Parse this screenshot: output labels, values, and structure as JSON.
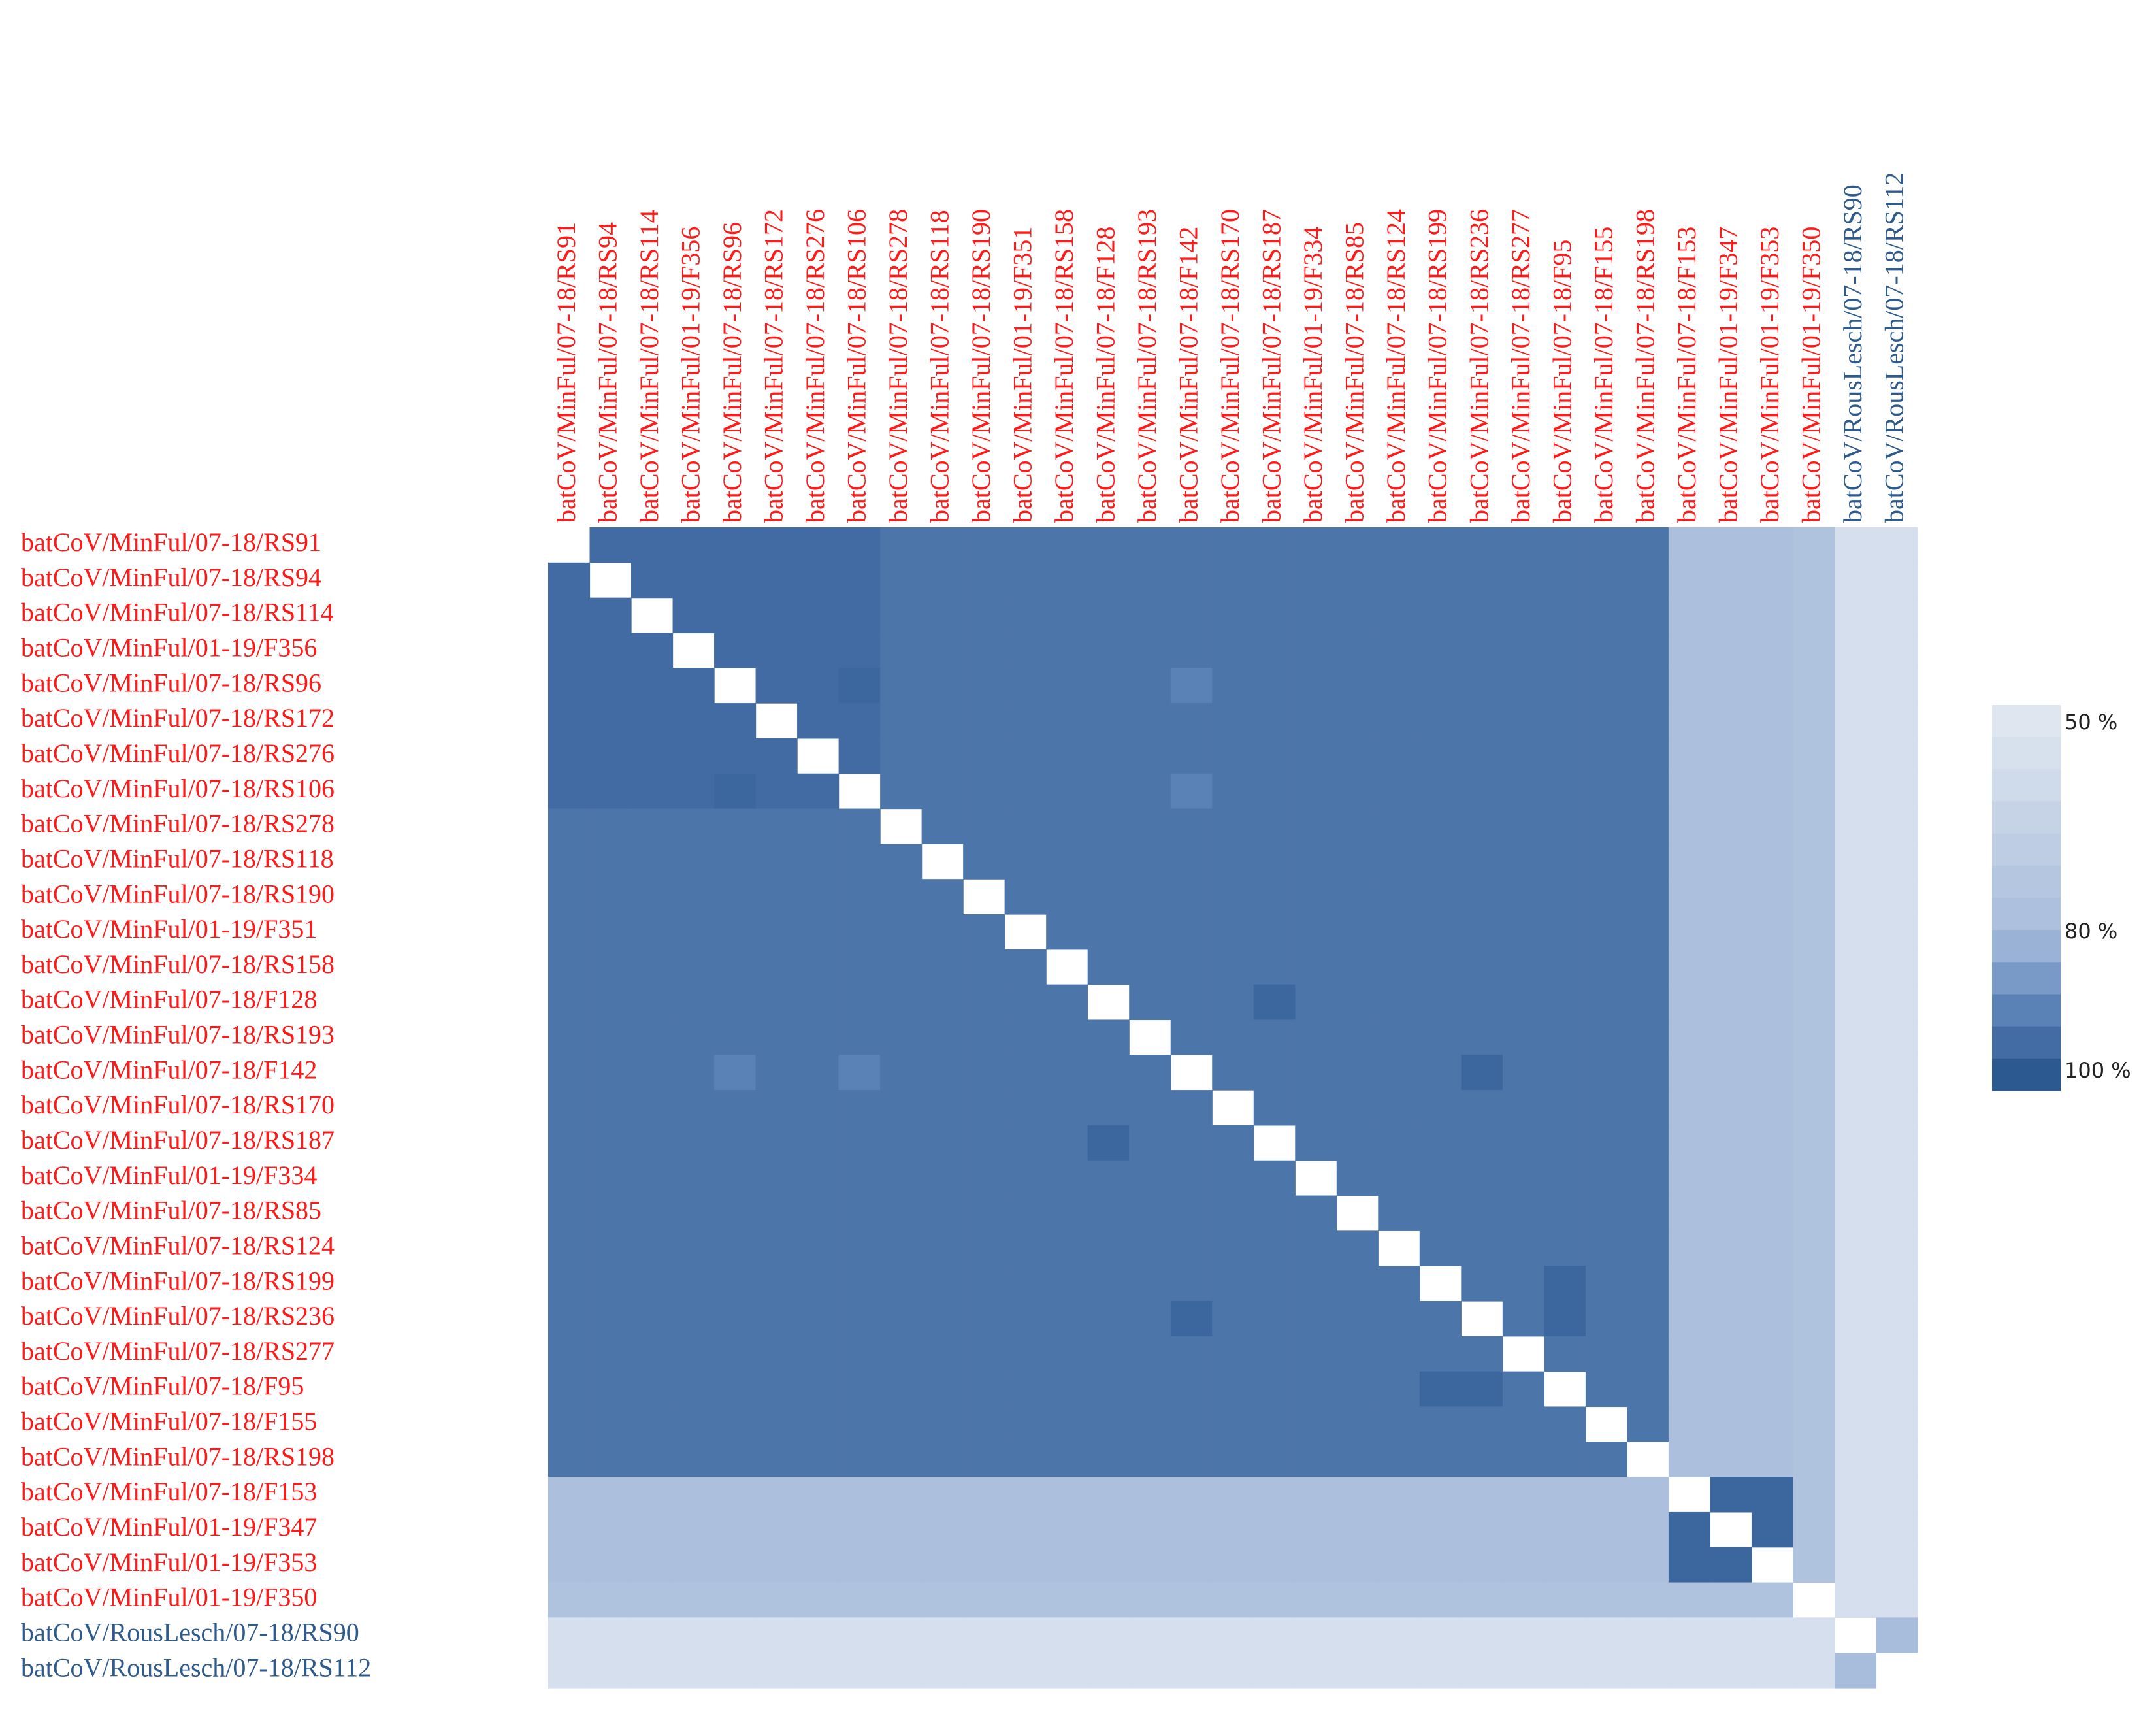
{
  "chart_data": {
    "type": "heatmap",
    "categories": [
      "batCoV/MinFul/07-18/RS91",
      "batCoV/MinFul/07-18/RS94",
      "batCoV/MinFul/07-18/RS114",
      "batCoV/MinFul/01-19/F356",
      "batCoV/MinFul/07-18/RS96",
      "batCoV/MinFul/07-18/RS172",
      "batCoV/MinFul/07-18/RS276",
      "batCoV/MinFul/07-18/RS106",
      "batCoV/MinFul/07-18/RS278",
      "batCoV/MinFul/07-18/RS118",
      "batCoV/MinFul/07-18/RS190",
      "batCoV/MinFul/01-19/F351",
      "batCoV/MinFul/07-18/RS158",
      "batCoV/MinFul/07-18/F128",
      "batCoV/MinFul/07-18/RS193",
      "batCoV/MinFul/07-18/F142",
      "batCoV/MinFul/07-18/RS170",
      "batCoV/MinFul/07-18/RS187",
      "batCoV/MinFul/01-19/F334",
      "batCoV/MinFul/07-18/RS85",
      "batCoV/MinFul/07-18/RS124",
      "batCoV/MinFul/07-18/RS199",
      "batCoV/MinFul/07-18/RS236",
      "batCoV/MinFul/07-18/RS277",
      "batCoV/MinFul/07-18/F95",
      "batCoV/MinFul/07-18/F155",
      "batCoV/MinFul/07-18/RS198",
      "batCoV/MinFul/07-18/F153",
      "batCoV/MinFul/01-19/F347",
      "batCoV/MinFul/01-19/F353",
      "batCoV/MinFul/01-19/F350",
      "batCoV/RousLesch/07-18/RS90",
      "batCoV/RousLesch/07-18/RS112"
    ],
    "label_colors": [
      "#ff1a1a",
      "#ff1a1a",
      "#ff1a1a",
      "#ff1a1a",
      "#ff1a1a",
      "#ff1a1a",
      "#ff1a1a",
      "#ff1a1a",
      "#ff1a1a",
      "#ff1a1a",
      "#ff1a1a",
      "#ff1a1a",
      "#ff1a1a",
      "#ff1a1a",
      "#ff1a1a",
      "#ff1a1a",
      "#ff1a1a",
      "#ff1a1a",
      "#ff1a1a",
      "#ff1a1a",
      "#ff1a1a",
      "#ff1a1a",
      "#ff1a1a",
      "#ff1a1a",
      "#ff1a1a",
      "#ff1a1a",
      "#ff1a1a",
      "#ff1a1a",
      "#ff1a1a",
      "#ff1a1a",
      "#ff1a1a",
      "#2f5a8c",
      "#2f5a8c"
    ],
    "values": [
      [
        null,
        96,
        96,
        96,
        96,
        96,
        96,
        96,
        94,
        94,
        94,
        94,
        94,
        94,
        94,
        94,
        94,
        94,
        94,
        94,
        94,
        94,
        94,
        94,
        94,
        94,
        94,
        78,
        78,
        78,
        76,
        55,
        55
      ],
      [
        96,
        null,
        96,
        96,
        96,
        96,
        96,
        96,
        94,
        94,
        94,
        94,
        94,
        94,
        94,
        94,
        94,
        94,
        94,
        94,
        94,
        94,
        94,
        94,
        94,
        94,
        94,
        78,
        78,
        78,
        76,
        55,
        55
      ],
      [
        96,
        96,
        null,
        96,
        96,
        96,
        96,
        96,
        94,
        94,
        94,
        94,
        94,
        94,
        94,
        94,
        94,
        94,
        94,
        94,
        94,
        94,
        94,
        94,
        94,
        94,
        94,
        78,
        78,
        78,
        76,
        55,
        55
      ],
      [
        96,
        96,
        96,
        null,
        96,
        96,
        96,
        96,
        94,
        94,
        94,
        94,
        94,
        94,
        94,
        94,
        94,
        94,
        94,
        94,
        94,
        94,
        94,
        94,
        94,
        94,
        94,
        78,
        78,
        78,
        76,
        55,
        55
      ],
      [
        96,
        96,
        96,
        96,
        null,
        96,
        96,
        97,
        94,
        94,
        94,
        94,
        94,
        94,
        94,
        91,
        94,
        94,
        94,
        94,
        94,
        94,
        94,
        94,
        94,
        94,
        94,
        78,
        78,
        78,
        76,
        55,
        55
      ],
      [
        96,
        96,
        96,
        96,
        96,
        null,
        96,
        96,
        94,
        94,
        94,
        94,
        94,
        94,
        94,
        94,
        94,
        94,
        94,
        94,
        94,
        94,
        94,
        94,
        94,
        94,
        94,
        78,
        78,
        78,
        76,
        55,
        55
      ],
      [
        96,
        96,
        96,
        96,
        96,
        96,
        null,
        96,
        94,
        94,
        94,
        94,
        94,
        94,
        94,
        94,
        94,
        94,
        94,
        94,
        94,
        94,
        94,
        94,
        94,
        94,
        94,
        78,
        78,
        78,
        76,
        55,
        55
      ],
      [
        96,
        96,
        96,
        96,
        97,
        96,
        96,
        null,
        94,
        94,
        94,
        94,
        94,
        94,
        94,
        91,
        94,
        94,
        94,
        94,
        94,
        94,
        94,
        94,
        94,
        94,
        94,
        78,
        78,
        78,
        76,
        55,
        55
      ],
      [
        94,
        94,
        94,
        94,
        94,
        94,
        94,
        94,
        null,
        94,
        94,
        94,
        94,
        94,
        94,
        94,
        94,
        94,
        94,
        94,
        94,
        94,
        94,
        94,
        94,
        94,
        94,
        78,
        78,
        78,
        76,
        55,
        55
      ],
      [
        94,
        94,
        94,
        94,
        94,
        94,
        94,
        94,
        94,
        null,
        94,
        94,
        94,
        94,
        94,
        94,
        94,
        94,
        94,
        94,
        94,
        94,
        94,
        94,
        94,
        94,
        94,
        78,
        78,
        78,
        76,
        55,
        55
      ],
      [
        94,
        94,
        94,
        94,
        94,
        94,
        94,
        94,
        94,
        94,
        null,
        94,
        94,
        94,
        94,
        94,
        94,
        94,
        94,
        94,
        94,
        94,
        94,
        94,
        94,
        94,
        94,
        78,
        78,
        78,
        76,
        55,
        55
      ],
      [
        94,
        94,
        94,
        94,
        94,
        94,
        94,
        94,
        94,
        94,
        94,
        null,
        94,
        94,
        94,
        94,
        94,
        94,
        94,
        94,
        94,
        94,
        94,
        94,
        94,
        94,
        94,
        78,
        78,
        78,
        76,
        55,
        55
      ],
      [
        94,
        94,
        94,
        94,
        94,
        94,
        94,
        94,
        94,
        94,
        94,
        94,
        null,
        94,
        94,
        94,
        94,
        94,
        94,
        94,
        94,
        94,
        94,
        94,
        94,
        94,
        94,
        78,
        78,
        78,
        76,
        55,
        55
      ],
      [
        94,
        94,
        94,
        94,
        94,
        94,
        94,
        94,
        94,
        94,
        94,
        94,
        94,
        null,
        94,
        94,
        94,
        97,
        94,
        94,
        94,
        94,
        94,
        94,
        94,
        94,
        94,
        78,
        78,
        78,
        76,
        55,
        55
      ],
      [
        94,
        94,
        94,
        94,
        94,
        94,
        94,
        94,
        94,
        94,
        94,
        94,
        94,
        94,
        null,
        94,
        94,
        94,
        94,
        94,
        94,
        94,
        94,
        94,
        94,
        94,
        94,
        78,
        78,
        78,
        76,
        55,
        55
      ],
      [
        94,
        94,
        94,
        94,
        91,
        94,
        94,
        91,
        94,
        94,
        94,
        94,
        94,
        94,
        94,
        null,
        94,
        94,
        94,
        94,
        94,
        94,
        97,
        94,
        94,
        94,
        94,
        78,
        78,
        78,
        76,
        55,
        55
      ],
      [
        94,
        94,
        94,
        94,
        94,
        94,
        94,
        94,
        94,
        94,
        94,
        94,
        94,
        94,
        94,
        94,
        null,
        94,
        94,
        94,
        94,
        94,
        94,
        94,
        94,
        94,
        94,
        78,
        78,
        78,
        76,
        55,
        55
      ],
      [
        94,
        94,
        94,
        94,
        94,
        94,
        94,
        94,
        94,
        94,
        94,
        94,
        94,
        97,
        94,
        94,
        94,
        null,
        94,
        94,
        94,
        94,
        94,
        94,
        94,
        94,
        94,
        78,
        78,
        78,
        76,
        55,
        55
      ],
      [
        94,
        94,
        94,
        94,
        94,
        94,
        94,
        94,
        94,
        94,
        94,
        94,
        94,
        94,
        94,
        94,
        94,
        94,
        null,
        94,
        94,
        94,
        94,
        94,
        94,
        94,
        94,
        78,
        78,
        78,
        76,
        55,
        55
      ],
      [
        94,
        94,
        94,
        94,
        94,
        94,
        94,
        94,
        94,
        94,
        94,
        94,
        94,
        94,
        94,
        94,
        94,
        94,
        94,
        null,
        94,
        94,
        94,
        94,
        94,
        94,
        94,
        78,
        78,
        78,
        76,
        55,
        55
      ],
      [
        94,
        94,
        94,
        94,
        94,
        94,
        94,
        94,
        94,
        94,
        94,
        94,
        94,
        94,
        94,
        94,
        94,
        94,
        94,
        94,
        null,
        94,
        94,
        94,
        94,
        94,
        94,
        78,
        78,
        78,
        76,
        55,
        55
      ],
      [
        94,
        94,
        94,
        94,
        94,
        94,
        94,
        94,
        94,
        94,
        94,
        94,
        94,
        94,
        94,
        94,
        94,
        94,
        94,
        94,
        94,
        null,
        94,
        94,
        97,
        94,
        94,
        78,
        78,
        78,
        76,
        55,
        55
      ],
      [
        94,
        94,
        94,
        94,
        94,
        94,
        94,
        94,
        94,
        94,
        94,
        94,
        94,
        94,
        94,
        97,
        94,
        94,
        94,
        94,
        94,
        94,
        null,
        94,
        97,
        94,
        94,
        78,
        78,
        78,
        76,
        55,
        55
      ],
      [
        94,
        94,
        94,
        94,
        94,
        94,
        94,
        94,
        94,
        94,
        94,
        94,
        94,
        94,
        94,
        94,
        94,
        94,
        94,
        94,
        94,
        94,
        94,
        null,
        94,
        94,
        94,
        78,
        78,
        78,
        76,
        55,
        55
      ],
      [
        94,
        94,
        94,
        94,
        94,
        94,
        94,
        94,
        94,
        94,
        94,
        94,
        94,
        94,
        94,
        94,
        94,
        94,
        94,
        94,
        94,
        97,
        97,
        94,
        null,
        94,
        94,
        78,
        78,
        78,
        76,
        55,
        55
      ],
      [
        94,
        94,
        94,
        94,
        94,
        94,
        94,
        94,
        94,
        94,
        94,
        94,
        94,
        94,
        94,
        94,
        94,
        94,
        94,
        94,
        94,
        94,
        94,
        94,
        94,
        null,
        94,
        78,
        78,
        78,
        76,
        55,
        55
      ],
      [
        94,
        94,
        94,
        94,
        94,
        94,
        94,
        94,
        94,
        94,
        94,
        94,
        94,
        94,
        94,
        94,
        94,
        94,
        94,
        94,
        94,
        94,
        94,
        94,
        94,
        94,
        null,
        78,
        78,
        78,
        76,
        55,
        55
      ],
      [
        78,
        78,
        78,
        78,
        78,
        78,
        78,
        78,
        78,
        78,
        78,
        78,
        78,
        78,
        78,
        78,
        78,
        78,
        78,
        78,
        78,
        78,
        78,
        78,
        78,
        78,
        78,
        null,
        97,
        97,
        76,
        55,
        55
      ],
      [
        78,
        78,
        78,
        78,
        78,
        78,
        78,
        78,
        78,
        78,
        78,
        78,
        78,
        78,
        78,
        78,
        78,
        78,
        78,
        78,
        78,
        78,
        78,
        78,
        78,
        78,
        78,
        97,
        null,
        97,
        76,
        55,
        55
      ],
      [
        78,
        78,
        78,
        78,
        78,
        78,
        78,
        78,
        78,
        78,
        78,
        78,
        78,
        78,
        78,
        78,
        78,
        78,
        78,
        78,
        78,
        78,
        78,
        78,
        78,
        78,
        78,
        97,
        97,
        null,
        76,
        55,
        55
      ],
      [
        76,
        76,
        76,
        76,
        76,
        76,
        76,
        76,
        76,
        76,
        76,
        76,
        76,
        76,
        76,
        76,
        76,
        76,
        76,
        76,
        76,
        76,
        76,
        76,
        76,
        76,
        76,
        76,
        76,
        76,
        null,
        55,
        55
      ],
      [
        55,
        55,
        55,
        55,
        55,
        55,
        55,
        55,
        55,
        55,
        55,
        55,
        55,
        55,
        55,
        55,
        55,
        55,
        55,
        55,
        55,
        55,
        55,
        55,
        55,
        55,
        55,
        55,
        55,
        55,
        55,
        null,
        80
      ],
      [
        55,
        55,
        55,
        55,
        55,
        55,
        55,
        55,
        55,
        55,
        55,
        55,
        55,
        55,
        55,
        55,
        55,
        55,
        55,
        55,
        55,
        55,
        55,
        55,
        55,
        55,
        55,
        55,
        55,
        55,
        55,
        80,
        null
      ]
    ],
    "zlim": [
      50,
      100
    ],
    "colorscale": [
      {
        "value": 50,
        "color": "#dfe6f0"
      },
      {
        "value": 80,
        "color": "#a8bcdb"
      },
      {
        "value": 90,
        "color": "#6087bb"
      },
      {
        "value": 100,
        "color": "#2d5991"
      }
    ],
    "colorbar_ticks": [
      {
        "value": 50,
        "label": "50 %"
      },
      {
        "value": 80,
        "label": "80 %"
      },
      {
        "value": 100,
        "label": "100 %"
      }
    ]
  }
}
